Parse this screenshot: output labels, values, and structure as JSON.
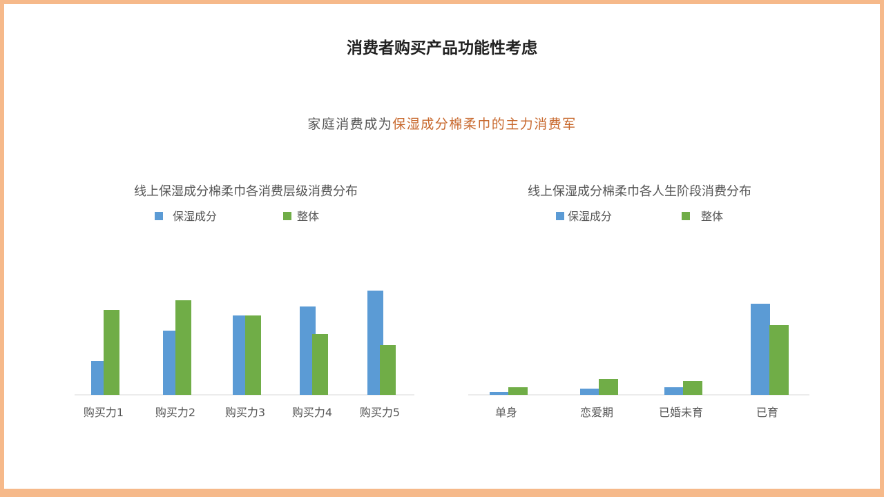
{
  "title": "消费者购买产品功能性考虑",
  "subtitle": {
    "prefix": "家庭消费成为",
    "highlight": "保湿成分棉柔巾的主力消费军"
  },
  "colors": {
    "series1": "#5b9bd5",
    "series2": "#70ad47",
    "highlight": "#c8692e",
    "frame": "#f6b98a"
  },
  "chart_data": [
    {
      "type": "bar",
      "title": "线上保湿成分棉柔巾各消费层级消费分布",
      "categories": [
        "购买力1",
        "购买力2",
        "购买力3",
        "购买力4",
        "购买力5"
      ],
      "series": [
        {
          "name": "保湿成分",
          "values": [
            49,
            93,
            115,
            128,
            151
          ]
        },
        {
          "name": "整体",
          "values": [
            123,
            137,
            115,
            88,
            72
          ]
        }
      ],
      "ylim": [
        0,
        160
      ],
      "grid": false,
      "legend": "top"
    },
    {
      "type": "bar",
      "title": "线上保湿成分棉柔巾各人生阶段消费分布",
      "categories": [
        "单身",
        "恋爱期",
        "已婚未育",
        "已育"
      ],
      "series": [
        {
          "name": "保湿成分",
          "values": [
            4,
            9,
            11,
            132
          ]
        },
        {
          "name": "整体",
          "values": [
            11,
            23,
            20,
            101
          ]
        }
      ],
      "ylim": [
        0,
        160
      ],
      "grid": false,
      "legend": "top"
    }
  ]
}
